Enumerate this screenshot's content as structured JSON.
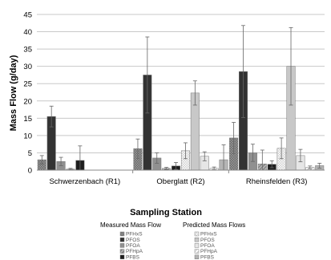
{
  "chart_data": {
    "type": "bar",
    "title": "",
    "xlabel": "Sampling Station",
    "ylabel": "Mass Flow (g/day)",
    "ylim": [
      0,
      45
    ],
    "yticks": [
      0,
      5,
      10,
      15,
      20,
      25,
      30,
      35,
      40,
      45
    ],
    "grid": true,
    "legend_position": "bottom",
    "categories": [
      "Schwerzenbach (R1)",
      "Oberglatt (R2)",
      "Rheinsfelden (R3)"
    ],
    "series": [
      {
        "name": "PFHxS",
        "group": "measured",
        "color": "#8a8a8a",
        "pattern": "checker",
        "values": [
          3.0,
          6.2,
          9.3
        ],
        "error": [
          1.2,
          2.8,
          4.5
        ]
      },
      {
        "name": "PFOS",
        "group": "measured",
        "color": "#333333",
        "pattern": "solid",
        "values": [
          15.5,
          27.5,
          28.5
        ],
        "error": [
          3.0,
          11.0,
          13.3
        ]
      },
      {
        "name": "PFOA",
        "group": "measured",
        "color": "#909090",
        "pattern": "solid",
        "values": [
          2.5,
          3.5,
          5.0
        ],
        "error": [
          1.2,
          1.5,
          2.5
        ]
      },
      {
        "name": "PFHpA",
        "group": "measured",
        "color": "#a8a8a8",
        "pattern": "stripe",
        "values": [
          0.3,
          0.5,
          1.8
        ],
        "error": [
          0.2,
          0.3,
          4.0
        ]
      },
      {
        "name": "PFBS",
        "group": "measured",
        "color": "#1e1e1e",
        "pattern": "solid",
        "values": [
          2.8,
          1.2,
          1.7
        ],
        "error": [
          4.2,
          1.0,
          1.0
        ]
      },
      {
        "name": "PFHxS",
        "group": "predicted",
        "color": "#f2f2f2",
        "pattern": "checker",
        "values": [
          null,
          5.6,
          6.3
        ],
        "error": [
          null,
          2.3,
          3.0
        ]
      },
      {
        "name": "PFOS",
        "group": "predicted",
        "color": "#c8c8c8",
        "pattern": "solid",
        "values": [
          null,
          22.3,
          30.0
        ],
        "error": [
          null,
          3.5,
          11.2
        ]
      },
      {
        "name": "PFOA",
        "group": "predicted",
        "color": "#e6e6e6",
        "pattern": "solid",
        "values": [
          null,
          4.0,
          4.2
        ],
        "error": [
          null,
          1.3,
          1.8
        ]
      },
      {
        "name": "PFHpA",
        "group": "predicted",
        "color": "#f0f0f0",
        "pattern": "stripe",
        "values": [
          null,
          0.5,
          0.8
        ],
        "error": [
          null,
          0.4,
          0.4
        ]
      },
      {
        "name": "PFBS",
        "group": "predicted",
        "color": "#b4b4b4",
        "pattern": "solid",
        "values": [
          null,
          3.0,
          1.3
        ],
        "error": [
          null,
          4.3,
          0.7
        ]
      }
    ],
    "legend": {
      "measured_title": "Measured Mass Flow",
      "predicted_title": "Predicted Mass Flows",
      "items": [
        "PFHxS",
        "PFOS",
        "PFOA",
        "PFHpA",
        "PFBS"
      ]
    }
  }
}
